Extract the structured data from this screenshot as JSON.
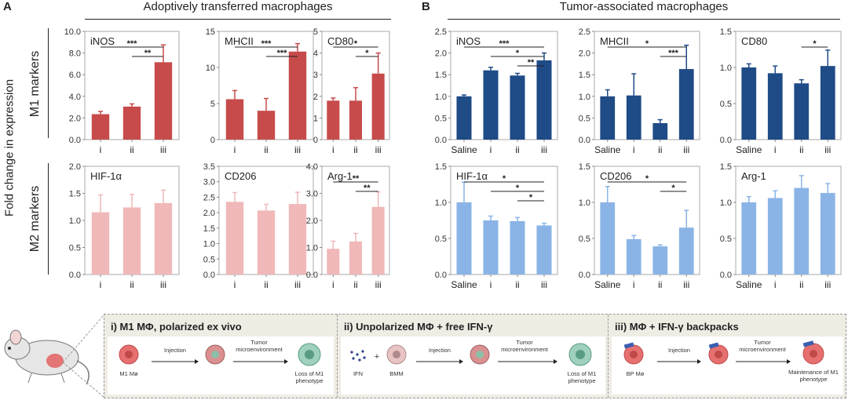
{
  "panels": {
    "A": {
      "letter": "A",
      "title": "Adoptively transferred macrophages"
    },
    "B": {
      "letter": "B",
      "title": "Tumor-associated macrophages"
    }
  },
  "y_axis_title": "Fold change in expression",
  "row_labels": {
    "m1": "M1 markers",
    "m2": "M2 markers"
  },
  "chart_data": [
    {
      "id": "A-iNOS",
      "type": "bar",
      "title": "iNOS",
      "categories": [
        "i",
        "ii",
        "iii"
      ],
      "values": [
        2.35,
        3.05,
        7.15
      ],
      "errors": [
        0.25,
        0.25,
        1.6
      ],
      "yticks": [
        "0.0",
        "2.0",
        "4.0",
        "6.0",
        "8.0",
        "10.0"
      ],
      "ylim": [
        0,
        10
      ],
      "color": "#c74b4b",
      "sig": [
        {
          "from": 0,
          "to": 2,
          "label": "***"
        },
        {
          "from": 1,
          "to": 2,
          "label": "**"
        }
      ]
    },
    {
      "id": "A-MHCII",
      "type": "bar",
      "title": "MHCII",
      "categories": [
        "i",
        "ii",
        "iii"
      ],
      "values": [
        5.6,
        4.0,
        12.2
      ],
      "errors": [
        1.2,
        1.7,
        1.1
      ],
      "yticks": [
        "0",
        "5",
        "10",
        "15"
      ],
      "ylim": [
        0,
        15
      ],
      "color": "#c74b4b",
      "sig": [
        {
          "from": 0,
          "to": 2,
          "label": "***"
        },
        {
          "from": 1,
          "to": 2,
          "label": "***"
        }
      ]
    },
    {
      "id": "A-CD80",
      "type": "bar",
      "title": "CD80",
      "categories": [
        "i",
        "ii",
        "iii"
      ],
      "values": [
        1.8,
        1.8,
        3.05
      ],
      "errors": [
        0.12,
        0.6,
        0.95
      ],
      "yticks": [
        "0",
        "1",
        "2",
        "3",
        "4",
        "5"
      ],
      "ylim": [
        0,
        5
      ],
      "color": "#c74b4b",
      "sig": [
        {
          "from": 0,
          "to": 2,
          "label": "*"
        },
        {
          "from": 1,
          "to": 2,
          "label": "*"
        }
      ]
    },
    {
      "id": "A-HIF1a",
      "type": "bar",
      "title": "HIF-1α",
      "categories": [
        "i",
        "ii",
        "iii"
      ],
      "values": [
        1.15,
        1.24,
        1.32
      ],
      "errors": [
        0.32,
        0.24,
        0.24
      ],
      "yticks": [
        "0.0",
        "0.5",
        "1.0",
        "1.5",
        "2.0"
      ],
      "ylim": [
        0,
        2
      ],
      "color": "#f0b8b8",
      "sig": []
    },
    {
      "id": "A-CD206",
      "type": "bar",
      "title": "CD206",
      "categories": [
        "i",
        "ii",
        "iii"
      ],
      "values": [
        2.35,
        2.07,
        2.28
      ],
      "errors": [
        0.3,
        0.2,
        0.38
      ],
      "yticks": [
        "0.0",
        "0.5",
        "1.0",
        "1.5",
        "2.0",
        "2.5",
        "3.0",
        "3.5"
      ],
      "ylim": [
        0,
        3.5
      ],
      "color": "#f0b8b8",
      "sig": []
    },
    {
      "id": "A-Arg1",
      "type": "bar",
      "title": "Arg-1",
      "categories": [
        "i",
        "ii",
        "iii"
      ],
      "values": [
        0.95,
        1.22,
        2.5
      ],
      "errors": [
        0.28,
        0.3,
        0.55
      ],
      "yticks": [
        "0.0",
        "1.0",
        "2.0",
        "3.0",
        "4.0"
      ],
      "ylim": [
        0,
        4
      ],
      "color": "#f0b8b8",
      "sig": [
        {
          "from": 0,
          "to": 2,
          "label": "**"
        },
        {
          "from": 1,
          "to": 2,
          "label": "**"
        }
      ]
    },
    {
      "id": "B-iNOS",
      "type": "bar",
      "title": "iNOS",
      "categories": [
        "Saline",
        "i",
        "ii",
        "iii"
      ],
      "values": [
        1.0,
        1.6,
        1.48,
        1.83
      ],
      "errors": [
        0.03,
        0.07,
        0.05,
        0.17
      ],
      "yticks": [
        "0.0",
        "0.5",
        "1.0",
        "1.5",
        "2.0",
        "2.5"
      ],
      "ylim": [
        0,
        2.5
      ],
      "color": "#1f4b87",
      "sig": [
        {
          "from": 0,
          "to": 3,
          "label": "***"
        },
        {
          "from": 1,
          "to": 3,
          "label": "*"
        },
        {
          "from": 2,
          "to": 3,
          "label": "**"
        }
      ]
    },
    {
      "id": "B-MHCII",
      "type": "bar",
      "title": "MHCII",
      "categories": [
        "Saline",
        "i",
        "ii",
        "iii"
      ],
      "values": [
        1.0,
        1.02,
        0.38,
        1.63
      ],
      "errors": [
        0.15,
        0.5,
        0.08,
        0.55
      ],
      "yticks": [
        "0.0",
        "0.5",
        "1.0",
        "1.5",
        "2.0",
        "2.5"
      ],
      "ylim": [
        0,
        2.5
      ],
      "color": "#1f4b87",
      "sig": [
        {
          "from": 0,
          "to": 3,
          "label": "*"
        },
        {
          "from": 2,
          "to": 3,
          "label": "***"
        }
      ]
    },
    {
      "id": "B-CD80",
      "type": "bar",
      "title": "CD80",
      "categories": [
        "Saline",
        "i",
        "ii",
        "iii"
      ],
      "values": [
        1.0,
        0.92,
        0.78,
        1.02
      ],
      "errors": [
        0.05,
        0.1,
        0.05,
        0.22
      ],
      "yticks": [
        "0.0",
        "0.5",
        "1.0",
        "1.5"
      ],
      "ylim": [
        0,
        1.5
      ],
      "color": "#1f4b87",
      "sig": [
        {
          "from": 2,
          "to": 3,
          "label": "*"
        }
      ]
    },
    {
      "id": "B-HIF1a",
      "type": "bar",
      "title": "HIF-1α",
      "categories": [
        "Saline",
        "i",
        "ii",
        "iii"
      ],
      "values": [
        1.0,
        0.75,
        0.74,
        0.68
      ],
      "errors": [
        0.28,
        0.06,
        0.05,
        0.03
      ],
      "yticks": [
        "0.0",
        "0.5",
        "1.0",
        "1.5"
      ],
      "ylim": [
        0,
        1.5
      ],
      "color": "#8ab4e6",
      "sig": [
        {
          "from": 0,
          "to": 3,
          "label": "*"
        },
        {
          "from": 1,
          "to": 3,
          "label": "*"
        },
        {
          "from": 2,
          "to": 3,
          "label": "*"
        }
      ]
    },
    {
      "id": "B-CD206",
      "type": "bar",
      "title": "CD206",
      "categories": [
        "Saline",
        "i",
        "ii",
        "iii"
      ],
      "values": [
        1.0,
        0.49,
        0.39,
        0.65
      ],
      "errors": [
        0.22,
        0.05,
        0.02,
        0.24
      ],
      "yticks": [
        "0.0",
        "0.5",
        "1.0",
        "1.5"
      ],
      "ylim": [
        0,
        1.5
      ],
      "color": "#8ab4e6",
      "sig": [
        {
          "from": 0,
          "to": 3,
          "label": "*"
        },
        {
          "from": 2,
          "to": 3,
          "label": "*"
        }
      ]
    },
    {
      "id": "B-Arg1",
      "type": "bar",
      "title": "Arg-1",
      "categories": [
        "Saline",
        "i",
        "ii",
        "iii"
      ],
      "values": [
        1.0,
        1.06,
        1.2,
        1.13
      ],
      "errors": [
        0.08,
        0.1,
        0.17,
        0.13
      ],
      "yticks": [
        "0.0",
        "0.5",
        "1.0",
        "1.5"
      ],
      "ylim": [
        0,
        1.5
      ],
      "color": "#8ab4e6",
      "sig": []
    }
  ],
  "schematics": [
    {
      "title": "i) M1 MΦ, polarized ex vivo",
      "start_label": "M1 Mø",
      "arrow1": "Injection",
      "arrow2": "Tumor microenvironment",
      "end_label": "Loss of M1 phenotype"
    },
    {
      "title": "ii) Unpolarized MΦ + free IFN-γ",
      "ifn_label": "IFN",
      "plus": "+",
      "start_label": "BMM",
      "arrow1": "Injection",
      "arrow2": "Tumor microenvironment",
      "end_label": "Loss of M1 phenotype"
    },
    {
      "title": "iii) MΦ + IFN-γ backpacks",
      "start_label": "BP Mø",
      "arrow1": "Injection",
      "arrow2": "Tumor microenvironment",
      "end_label": "Maintenance of M1 phenotype"
    }
  ],
  "colors": {
    "m1_red": "#c74b4b",
    "m2_pink": "#f0b8b8",
    "m1_blue": "#1f4b87",
    "m2_lightblue": "#8ab4e6",
    "strip_bg": "#efece4"
  }
}
